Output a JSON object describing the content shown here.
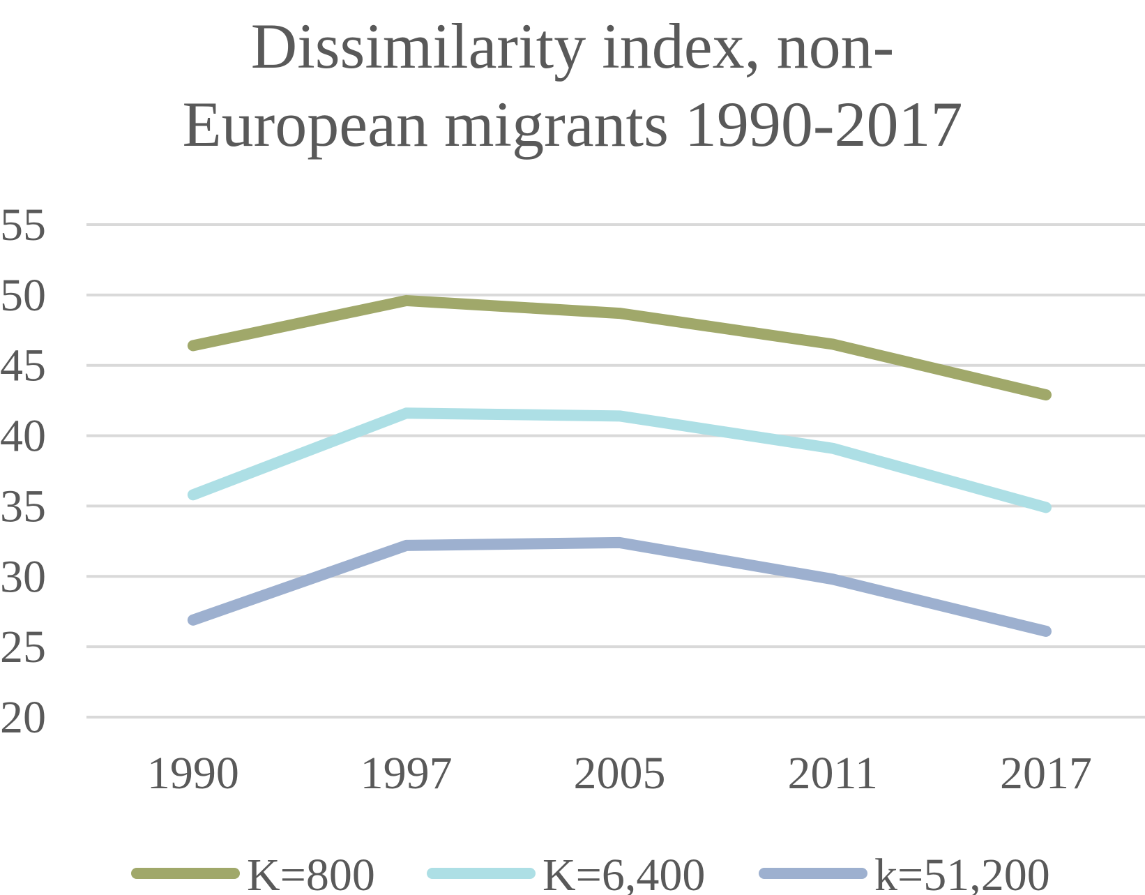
{
  "chart_data": {
    "type": "line",
    "title_lines": [
      "Dissimilarity index, non-",
      "European migrants 1990-2017"
    ],
    "xlabel": "",
    "ylabel": "",
    "categories": [
      "1990",
      "1997",
      "2005",
      "2011",
      "2017"
    ],
    "ylim": [
      20,
      55
    ],
    "yticks": [
      20,
      25,
      30,
      35,
      40,
      45,
      50,
      55
    ],
    "grid": true,
    "legend_position": "bottom",
    "series": [
      {
        "name": "K=800",
        "color": "#a0a86a",
        "values": [
          46.4,
          49.6,
          48.7,
          46.5,
          42.9
        ]
      },
      {
        "name": "K=6,400",
        "color": "#addfe5",
        "values": [
          35.8,
          41.6,
          41.4,
          39.1,
          34.9
        ]
      },
      {
        "name": "k=51,200",
        "color": "#9db0cf",
        "values": [
          26.9,
          32.2,
          32.4,
          29.8,
          26.1
        ]
      }
    ]
  }
}
